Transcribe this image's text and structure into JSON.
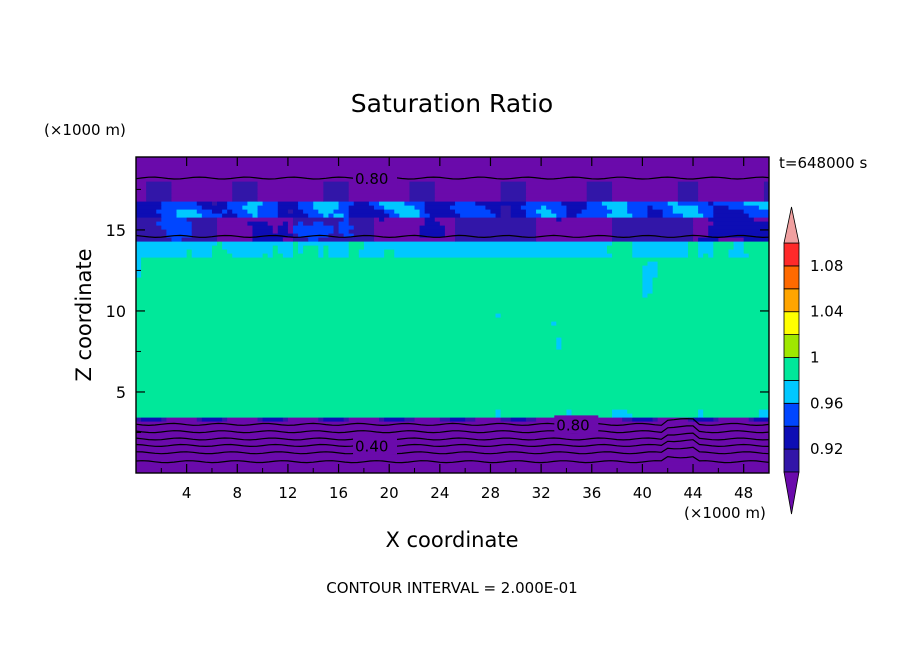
{
  "chart_data": {
    "type": "heatmap",
    "title": "Saturation Ratio",
    "xlabel": "X coordinate",
    "ylabel": "Z coordinate",
    "x_unit": "(×1000 m)",
    "y_unit": "(×1000 m)",
    "time_label": "t=648000 s",
    "footer": "CONTOUR INTERVAL = 2.000E-01",
    "xlim": [
      0,
      50
    ],
    "ylim": [
      0,
      19.5
    ],
    "x_ticks": [
      "4",
      "8",
      "12",
      "16",
      "20",
      "24",
      "28",
      "32",
      "36",
      "40",
      "44",
      "48"
    ],
    "y_ticks": [
      "5",
      "10",
      "15"
    ],
    "contour_labels": [
      {
        "text": "0.80",
        "x": 17.3,
        "z": 18.2
      },
      {
        "text": "0.80",
        "x": 33.2,
        "z": 3.0
      },
      {
        "text": "0.40",
        "x": 17.3,
        "z": 1.7
      }
    ],
    "colorbar": {
      "boundaries": [
        0.9,
        0.92,
        0.94,
        0.96,
        0.98,
        1.0,
        1.02,
        1.04,
        1.06,
        1.08,
        1.1
      ],
      "labels": [
        "0.92",
        "0.96",
        "1",
        "1.04",
        "1.08"
      ],
      "colors": [
        "#6a0aab",
        "#3216a8",
        "#0d0db4",
        "#0046ff",
        "#00c8ff",
        "#00e89a",
        "#9fe800",
        "#ffff00",
        "#ffa500",
        "#ff6a00",
        "#ff2a2a",
        "#f0a0a0"
      ],
      "extend": "both"
    }
  }
}
